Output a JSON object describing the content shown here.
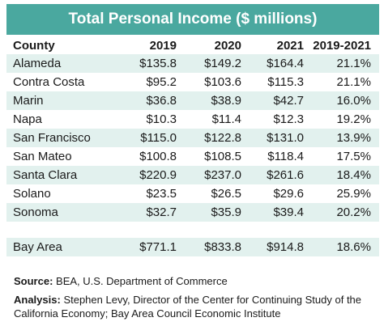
{
  "table": {
    "title": "Total Personal Income ($ millions)",
    "columns": [
      "County",
      "2019",
      "2020",
      "2021",
      "2019-2021"
    ],
    "rows": [
      [
        "Alameda",
        "$135.8",
        "$149.2",
        "$164.4",
        "21.1%"
      ],
      [
        "Contra Costa",
        "$95.2",
        "$103.6",
        "$115.3",
        "21.1%"
      ],
      [
        "Marin",
        "$36.8",
        "$38.9",
        "$42.7",
        "16.0%"
      ],
      [
        "Napa",
        "$10.3",
        "$11.4",
        "$12.3",
        "19.2%"
      ],
      [
        "San Francisco",
        "$115.0",
        "$122.8",
        "$131.0",
        "13.9%"
      ],
      [
        "San Mateo",
        "$100.8",
        "$108.5",
        "$118.4",
        "17.5%"
      ],
      [
        "Santa Clara",
        "$220.9",
        "$237.0",
        "$261.6",
        "18.4%"
      ],
      [
        "Solano",
        "$23.5",
        "$26.5",
        "$29.6",
        "25.9%"
      ],
      [
        "Sonoma",
        "$32.7",
        "$35.9",
        "$39.4",
        "20.2%"
      ]
    ],
    "total": [
      "Bay Area",
      "$771.1",
      "$833.8",
      "$914.8",
      "18.6%"
    ]
  },
  "source": {
    "label": "Source:",
    "text": "BEA, U.S. Department of Commerce"
  },
  "analysis": {
    "label": "Analysis:",
    "text": "Stephen Levy, Director of the Center for Continuing Study of the California Economy; Bay Area Council Economic Institute"
  }
}
